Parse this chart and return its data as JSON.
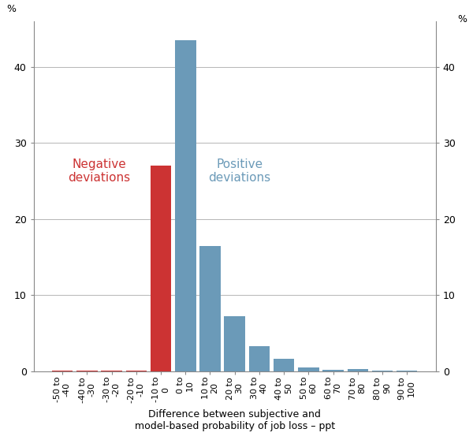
{
  "categories": [
    "-50 to\n-40",
    "-40 to\n-30",
    "-30 to\n-20",
    "-20 to\n-10",
    "-10 to\n0",
    "0 to\n10",
    "10 to\n20",
    "20 to\n30",
    "30 to\n40",
    "40 to\n50",
    "50 to\n60",
    "60 to\n70",
    "70 to\n80",
    "80 to\n90",
    "90 to\n100"
  ],
  "values": [
    0.1,
    0.1,
    0.1,
    0.1,
    27.0,
    43.5,
    16.5,
    7.2,
    3.3,
    1.6,
    0.5,
    0.2,
    0.3,
    0.1,
    0.1
  ],
  "colors": [
    "#cc3333",
    "#cc3333",
    "#cc3333",
    "#cc3333",
    "#cc3333",
    "#6b9ab8",
    "#6b9ab8",
    "#6b9ab8",
    "#6b9ab8",
    "#6b9ab8",
    "#6b9ab8",
    "#6b9ab8",
    "#6b9ab8",
    "#6b9ab8",
    "#6b9ab8"
  ],
  "ylabel_left": "%",
  "ylabel_right": "%",
  "xlabel": "Difference between subjective and\nmodel-based probability of job loss – ppt",
  "ylim": [
    0,
    46
  ],
  "yticks": [
    0,
    10,
    20,
    30,
    40
  ],
  "neg_label": "Negative\ndeviations",
  "pos_label": "Positive\ndeviations",
  "neg_color": "#cc3333",
  "pos_color": "#6b9ab8",
  "background_color": "#ffffff",
  "grid_color": "#aaaaaa"
}
